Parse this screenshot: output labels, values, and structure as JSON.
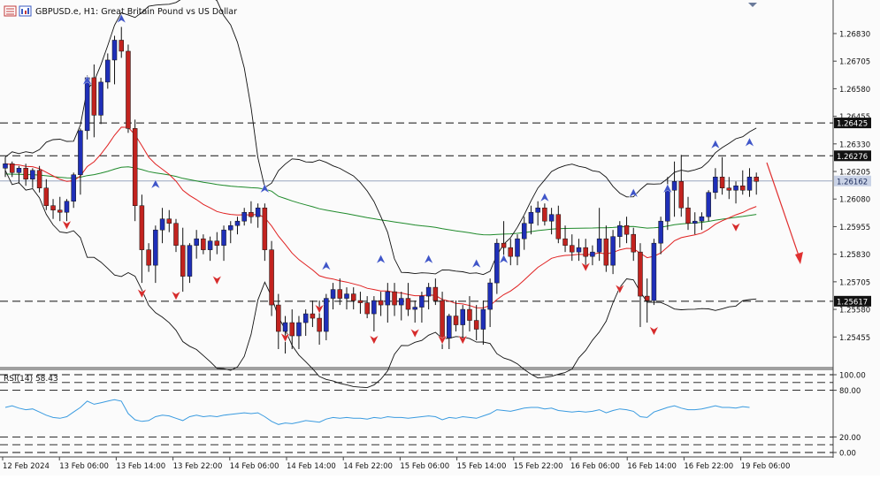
{
  "window": {
    "symbol": "GBPUSD.e",
    "timeframe": "H1",
    "description": "Great Britain Pound vs US Dollar",
    "title_text": "GBPUSD.e, H1:  Great Britain Pound vs US Dollar"
  },
  "colors": {
    "background": "#fbfbfb",
    "bull": "#1f2fb8",
    "bear": "#c2231f",
    "ma_fast": "#e02020",
    "ma_slow": "#1f8a2b",
    "bands": "#111111",
    "rsi": "#3a9be0",
    "arrow_up": "#3f55c8",
    "arrow_down": "#d62b2b",
    "forecast_arrow": "#e03030"
  },
  "price_axis": {
    "ticks": [
      "1.26830",
      "1.26705",
      "1.26580",
      "1.26455",
      "1.26330",
      "1.26205",
      "1.26080",
      "1.25955",
      "1.25830",
      "1.25705",
      "1.25580",
      "1.25455"
    ],
    "labeled_levels": [
      "1.26425",
      "1.26276",
      "1.26162",
      "1.25617"
    ],
    "current_price": "1.26162"
  },
  "rsi_panel": {
    "label": "RSI(14) 58.43",
    "ticks": [
      "100.00",
      "80.00",
      "20.00",
      "0.00"
    ]
  },
  "time_axis": {
    "labels": [
      "12 Feb 2024",
      "13 Feb 06:00",
      "13 Feb 14:00",
      "13 Feb 22:00",
      "14 Feb 06:00",
      "14 Feb 14:00",
      "14 Feb 22:00",
      "15 Feb 06:00",
      "15 Feb 14:00",
      "15 Feb 22:00",
      "16 Feb 06:00",
      "16 Feb 14:00",
      "16 Feb 22:00",
      "19 Feb 06:00"
    ]
  },
  "chart_data": {
    "type": "candlestick",
    "ylim": [
      1.2536,
      1.2691
    ],
    "rsi_ylim": [
      0,
      100
    ],
    "horizontal_levels": [
      1.26425,
      1.26276,
      1.25617
    ],
    "current_price": 1.26162,
    "candles": [
      [
        1.2622,
        1.2627,
        1.2618,
        1.2624
      ],
      [
        1.2624,
        1.2625,
        1.2618,
        1.262
      ],
      [
        1.262,
        1.2623,
        1.2615,
        1.2622
      ],
      [
        1.2622,
        1.2624,
        1.2614,
        1.2617
      ],
      [
        1.2617,
        1.2622,
        1.2613,
        1.2621
      ],
      [
        1.2621,
        1.2623,
        1.2611,
        1.2613
      ],
      [
        1.2613,
        1.2617,
        1.2603,
        1.2605
      ],
      [
        1.2605,
        1.2608,
        1.2599,
        1.2603
      ],
      [
        1.2603,
        1.2609,
        1.2598,
        1.2602
      ],
      [
        1.2602,
        1.2608,
        1.2598,
        1.2607
      ],
      [
        1.2607,
        1.262,
        1.2604,
        1.2619
      ],
      [
        1.2619,
        1.264,
        1.261,
        1.2639
      ],
      [
        1.2639,
        1.2664,
        1.2635,
        1.2663
      ],
      [
        1.2663,
        1.2669,
        1.2636,
        1.2646
      ],
      [
        1.2646,
        1.2663,
        1.2642,
        1.2661
      ],
      [
        1.2661,
        1.2674,
        1.2658,
        1.2671
      ],
      [
        1.2671,
        1.2682,
        1.266,
        1.268
      ],
      [
        1.268,
        1.2686,
        1.2672,
        1.2675
      ],
      [
        1.2675,
        1.2678,
        1.2638,
        1.264
      ],
      [
        1.264,
        1.2644,
        1.2598,
        1.2605
      ],
      [
        1.2605,
        1.261,
        1.257,
        1.2585
      ],
      [
        1.2585,
        1.2588,
        1.2575,
        1.2578
      ],
      [
        1.2578,
        1.2596,
        1.257,
        1.2594
      ],
      [
        1.2594,
        1.2604,
        1.2588,
        1.2599
      ],
      [
        1.2599,
        1.2603,
        1.2593,
        1.2597
      ],
      [
        1.2597,
        1.2599,
        1.2584,
        1.2587
      ],
      [
        1.2587,
        1.2595,
        1.2566,
        1.2573
      ],
      [
        1.2573,
        1.2588,
        1.257,
        1.2587
      ],
      [
        1.2587,
        1.2594,
        1.2581,
        1.259
      ],
      [
        1.259,
        1.2592,
        1.2583,
        1.2585
      ],
      [
        1.2585,
        1.2591,
        1.258,
        1.2589
      ],
      [
        1.2589,
        1.2593,
        1.2583,
        1.2587
      ],
      [
        1.2587,
        1.2596,
        1.258,
        1.2594
      ],
      [
        1.2594,
        1.2598,
        1.2588,
        1.2596
      ],
      [
        1.2596,
        1.26,
        1.2592,
        1.2598
      ],
      [
        1.2598,
        1.2604,
        1.2596,
        1.2602
      ],
      [
        1.2602,
        1.2607,
        1.2597,
        1.26
      ],
      [
        1.26,
        1.2606,
        1.2595,
        1.2604
      ],
      [
        1.2604,
        1.2606,
        1.258,
        1.2585
      ],
      [
        1.2585,
        1.2589,
        1.2555,
        1.256
      ],
      [
        1.256,
        1.2565,
        1.254,
        1.2548
      ],
      [
        1.2548,
        1.2555,
        1.2538,
        1.2552
      ],
      [
        1.2552,
        1.2558,
        1.254,
        1.2546
      ],
      [
        1.2546,
        1.2555,
        1.254,
        1.2552
      ],
      [
        1.2552,
        1.2558,
        1.2546,
        1.2556
      ],
      [
        1.2556,
        1.2562,
        1.255,
        1.2554
      ],
      [
        1.2554,
        1.2562,
        1.2542,
        1.2548
      ],
      [
        1.2548,
        1.2565,
        1.2544,
        1.2563
      ],
      [
        1.2563,
        1.257,
        1.2558,
        1.2567
      ],
      [
        1.2567,
        1.2572,
        1.256,
        1.2563
      ],
      [
        1.2563,
        1.2568,
        1.2558,
        1.2565
      ],
      [
        1.2565,
        1.2568,
        1.2558,
        1.2562
      ],
      [
        1.2562,
        1.2566,
        1.2556,
        1.2561
      ],
      [
        1.2561,
        1.2564,
        1.2554,
        1.2556
      ],
      [
        1.2556,
        1.2564,
        1.2548,
        1.2562
      ],
      [
        1.2562,
        1.2566,
        1.2555,
        1.256
      ],
      [
        1.256,
        1.257,
        1.2552,
        1.2566
      ],
      [
        1.2566,
        1.257,
        1.2555,
        1.256
      ],
      [
        1.256,
        1.2566,
        1.2553,
        1.2563
      ],
      [
        1.2563,
        1.257,
        1.2555,
        1.2558
      ],
      [
        1.2558,
        1.2562,
        1.2552,
        1.2559
      ],
      [
        1.2559,
        1.2566,
        1.2552,
        1.2564
      ],
      [
        1.2564,
        1.257,
        1.2558,
        1.2568
      ],
      [
        1.2568,
        1.2572,
        1.256,
        1.2562
      ],
      [
        1.2562,
        1.2566,
        1.254,
        1.2545
      ],
      [
        1.2545,
        1.2556,
        1.254,
        1.2555
      ],
      [
        1.2555,
        1.2562,
        1.2548,
        1.2551
      ],
      [
        1.2551,
        1.256,
        1.2544,
        1.2558
      ],
      [
        1.2558,
        1.2564,
        1.2548,
        1.2553
      ],
      [
        1.2553,
        1.256,
        1.2544,
        1.2549
      ],
      [
        1.2549,
        1.2562,
        1.2542,
        1.2558
      ],
      [
        1.2558,
        1.2572,
        1.255,
        1.257
      ],
      [
        1.257,
        1.259,
        1.2565,
        1.2588
      ],
      [
        1.2588,
        1.2598,
        1.258,
        1.2586
      ],
      [
        1.2586,
        1.259,
        1.2578,
        1.2582
      ],
      [
        1.2582,
        1.2592,
        1.2578,
        1.259
      ],
      [
        1.259,
        1.26,
        1.2585,
        1.2597
      ],
      [
        1.2597,
        1.2605,
        1.2592,
        1.2602
      ],
      [
        1.2602,
        1.2607,
        1.2596,
        1.2604
      ],
      [
        1.2604,
        1.2606,
        1.2596,
        1.2598
      ],
      [
        1.2598,
        1.2604,
        1.2592,
        1.2601
      ],
      [
        1.2601,
        1.2605,
        1.2588,
        1.259
      ],
      [
        1.259,
        1.2596,
        1.2584,
        1.2587
      ],
      [
        1.2587,
        1.2592,
        1.258,
        1.2584
      ],
      [
        1.2584,
        1.259,
        1.258,
        1.2586
      ],
      [
        1.2586,
        1.259,
        1.2578,
        1.2582
      ],
      [
        1.2582,
        1.2587,
        1.2578,
        1.2584
      ],
      [
        1.2584,
        1.2604,
        1.258,
        1.259
      ],
      [
        1.259,
        1.2596,
        1.2575,
        1.2578
      ],
      [
        1.2578,
        1.2594,
        1.2574,
        1.2591
      ],
      [
        1.2591,
        1.2598,
        1.2586,
        1.2596
      ],
      [
        1.2596,
        1.26,
        1.2588,
        1.2592
      ],
      [
        1.2592,
        1.2595,
        1.258,
        1.2584
      ],
      [
        1.2584,
        1.2588,
        1.255,
        1.2564
      ],
      [
        1.2564,
        1.2572,
        1.2552,
        1.2562
      ],
      [
        1.2562,
        1.259,
        1.256,
        1.2588
      ],
      [
        1.2588,
        1.26,
        1.2583,
        1.2598
      ],
      [
        1.2598,
        1.2618,
        1.2594,
        1.2612
      ],
      [
        1.2612,
        1.2625,
        1.26,
        1.2616
      ],
      [
        1.2616,
        1.2628,
        1.26,
        1.2604
      ],
      [
        1.2604,
        1.2609,
        1.2594,
        1.2597
      ],
      [
        1.2597,
        1.2602,
        1.2592,
        1.2598
      ],
      [
        1.2598,
        1.2602,
        1.2594,
        1.26
      ],
      [
        1.26,
        1.2612,
        1.2598,
        1.2611
      ],
      [
        1.2611,
        1.2622,
        1.2608,
        1.2618
      ],
      [
        1.2618,
        1.2627,
        1.261,
        1.2613
      ],
      [
        1.2613,
        1.2618,
        1.2608,
        1.2612
      ],
      [
        1.2612,
        1.2616,
        1.2606,
        1.2614
      ],
      [
        1.2614,
        1.2621,
        1.261,
        1.2612
      ],
      [
        1.2612,
        1.2622,
        1.2609,
        1.2618
      ],
      [
        1.2618,
        1.262,
        1.261,
        1.2616
      ]
    ],
    "arrows": {
      "up": [
        [
          12,
          1.2661
        ],
        [
          17,
          1.2689
        ],
        [
          22,
          1.2614
        ],
        [
          38,
          1.2612
        ],
        [
          47,
          1.2577
        ],
        [
          55,
          1.258
        ],
        [
          62,
          1.258
        ],
        [
          69,
          1.2578
        ],
        [
          73,
          1.258
        ],
        [
          79,
          1.2608
        ],
        [
          92,
          1.261
        ],
        [
          97,
          1.2612
        ],
        [
          104,
          1.2632
        ],
        [
          109,
          1.2633
        ]
      ],
      "down": [
        [
          9,
          1.2597
        ],
        [
          20,
          1.2566
        ],
        [
          25,
          1.2565
        ],
        [
          31,
          1.2572
        ],
        [
          41,
          1.2546
        ],
        [
          46,
          1.2559
        ],
        [
          54,
          1.2545
        ],
        [
          60,
          1.2548
        ],
        [
          64,
          1.2545
        ],
        [
          67,
          1.2545
        ],
        [
          85,
          1.2578
        ],
        [
          90,
          1.2568
        ],
        [
          95,
          1.2549
        ],
        [
          107,
          1.2596
        ]
      ]
    },
    "rsi": [
      58,
      60,
      57,
      55,
      56,
      52,
      48,
      45,
      44,
      46,
      52,
      58,
      66,
      62,
      64,
      66,
      68,
      66,
      50,
      42,
      40,
      41,
      46,
      48,
      47,
      44,
      41,
      46,
      48,
      46,
      47,
      46,
      48,
      49,
      50,
      51,
      50,
      51,
      46,
      40,
      36,
      38,
      37,
      39,
      41,
      40,
      39,
      43,
      45,
      44,
      45,
      44,
      44,
      43,
      45,
      44,
      46,
      45,
      45,
      44,
      45,
      46,
      47,
      46,
      42,
      45,
      44,
      46,
      45,
      44,
      47,
      50,
      55,
      54,
      53,
      55,
      57,
      58,
      58,
      56,
      57,
      54,
      53,
      52,
      53,
      52,
      53,
      55,
      51,
      54,
      56,
      55,
      53,
      46,
      45,
      52,
      55,
      58,
      60,
      57,
      55,
      55,
      56,
      58,
      60,
      58,
      58,
      57,
      59,
      58
    ]
  }
}
